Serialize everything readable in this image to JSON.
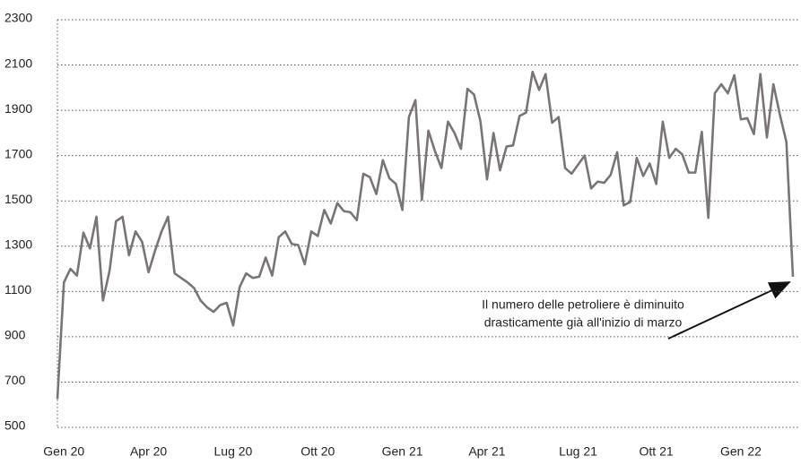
{
  "chart_data": {
    "type": "line",
    "categories": [
      null,
      "Gen 20",
      null,
      null,
      null,
      null,
      null,
      null,
      null,
      null,
      null,
      null,
      null,
      null,
      "Apr 20",
      null,
      null,
      null,
      null,
      null,
      null,
      null,
      null,
      null,
      null,
      null,
      null,
      "Lug 20",
      null,
      null,
      null,
      null,
      null,
      null,
      null,
      null,
      null,
      null,
      null,
      null,
      "Ott 20",
      null,
      null,
      null,
      null,
      null,
      null,
      null,
      null,
      null,
      null,
      null,
      null,
      "Gen 21",
      null,
      null,
      null,
      null,
      null,
      null,
      null,
      null,
      null,
      null,
      null,
      null,
      "Apr 21",
      null,
      null,
      null,
      null,
      null,
      null,
      null,
      null,
      null,
      null,
      null,
      null,
      null,
      "Lug 21",
      null,
      null,
      null,
      null,
      null,
      null,
      null,
      null,
      null,
      null,
      null,
      "Ott 21",
      null,
      null,
      null,
      null,
      null,
      null,
      null,
      null,
      null,
      null,
      null,
      null,
      "Gen 22",
      null,
      null,
      null,
      null,
      null,
      null,
      null,
      null
    ],
    "values": [
      625,
      1140,
      1200,
      1170,
      1360,
      1290,
      1430,
      1060,
      1190,
      1410,
      1430,
      1260,
      1365,
      1320,
      1185,
      1280,
      1365,
      1430,
      1180,
      1160,
      1140,
      1115,
      1060,
      1030,
      1010,
      1040,
      1050,
      950,
      1120,
      1180,
      1160,
      1165,
      1250,
      1170,
      1340,
      1365,
      1310,
      1305,
      1220,
      1365,
      1345,
      1460,
      1400,
      1490,
      1455,
      1450,
      1415,
      1620,
      1605,
      1530,
      1680,
      1600,
      1575,
      1460,
      1870,
      1945,
      1505,
      1810,
      1720,
      1645,
      1850,
      1800,
      1730,
      1995,
      1970,
      1850,
      1595,
      1800,
      1635,
      1740,
      1745,
      1875,
      1890,
      2070,
      1990,
      2060,
      1845,
      1870,
      1645,
      1620,
      1660,
      1700,
      1555,
      1585,
      1580,
      1615,
      1715,
      1480,
      1495,
      1690,
      1610,
      1665,
      1575,
      1850,
      1690,
      1730,
      1705,
      1625,
      1625,
      1805,
      1425,
      1975,
      2015,
      1975,
      2055,
      1860,
      1865,
      1795,
      2060,
      1780,
      2015,
      1880,
      1760,
      1165
    ],
    "color": "#7a7574",
    "ylim": [
      500,
      2300
    ],
    "yticks": [
      500,
      700,
      900,
      1100,
      1300,
      1500,
      1700,
      1900,
      2100,
      2300
    ],
    "grid": true,
    "annotation": [
      "Il numero delle petroliere è diminuito",
      "drasticamente già all'inizio di marzo"
    ]
  }
}
